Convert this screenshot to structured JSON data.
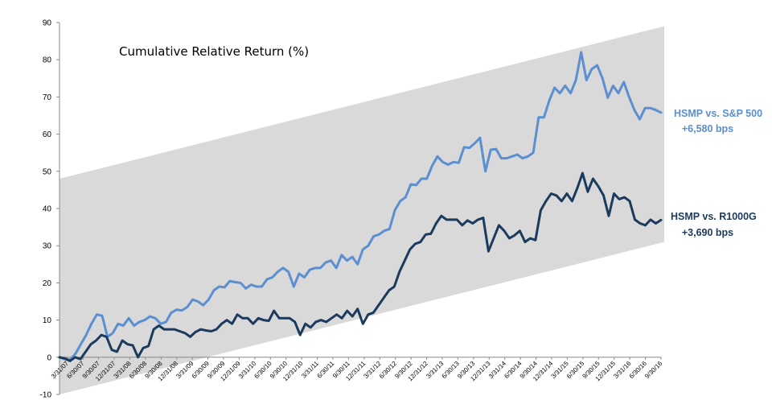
{
  "chart_data": {
    "type": "line",
    "title": "Cumulative Relative Return (%)",
    "xlabel": "",
    "ylabel": "",
    "ylim": [
      -10,
      90
    ],
    "yticks": [
      -10,
      0,
      10,
      20,
      30,
      40,
      50,
      60,
      70,
      80,
      90
    ],
    "grid": false,
    "legend": "none",
    "x_tick_labels": [
      "3/31/07",
      "6/30/07",
      "9/30/07",
      "12/31/07",
      "3/31/08",
      "6/30/08",
      "9/30/08",
      "12/31/08",
      "3/31/09",
      "6/30/09",
      "9/30/09",
      "12/31/09",
      "3/31/10",
      "6/30/10",
      "9/30/10",
      "12/31/10",
      "3/31/11",
      "6/30/11",
      "9/30/11",
      "12/31/11",
      "3/31/12",
      "6/30/12",
      "9/30/12",
      "12/31/12",
      "3/31/13",
      "6/30/13",
      "9/30/13",
      "12/31/13",
      "3/31/14",
      "6/30/14",
      "9/30/14",
      "12/31/14",
      "3/31/15",
      "6/30/15",
      "9/30/15",
      "12/31/15",
      "3/31/16",
      "6/30/16",
      "9/30/16"
    ],
    "band": {
      "color": "#d9d9d9",
      "lower": [
        -10,
        31
      ],
      "upper": [
        48,
        89
      ]
    },
    "series": [
      {
        "name": "HSMP vs. S&P 500",
        "label_line2": "+6,580 bps",
        "color": "#5b8fd0",
        "values": [
          0,
          -0.5,
          -0.7,
          1,
          3.5,
          6,
          9,
          11.5,
          11.2,
          5.5,
          6.5,
          9,
          8.5,
          10.5,
          8.5,
          9.5,
          10,
          11,
          10.5,
          9,
          9.5,
          12,
          12.8,
          12.6,
          13.5,
          15.5,
          15,
          14,
          15.5,
          18,
          19,
          18.8,
          20.5,
          20.2,
          20,
          18.5,
          19.5,
          19,
          19,
          21,
          21.5,
          23,
          24,
          23,
          19,
          22.5,
          21.5,
          23.5,
          24,
          24,
          25.5,
          26,
          24,
          27.5,
          26,
          27,
          25,
          29,
          30,
          32.5,
          33,
          34,
          34.5,
          39.5,
          42,
          43,
          46.5,
          46.3,
          48,
          48,
          51.5,
          54,
          52.5,
          51.8,
          52.5,
          52.3,
          56.5,
          56.3,
          57.5,
          59,
          50,
          55.8,
          56,
          53.5,
          53.5,
          54,
          54.5,
          53.5,
          54,
          55,
          64.5,
          64.5,
          69,
          72.5,
          71,
          73,
          71,
          74.5,
          82,
          74.5,
          77.5,
          78.5,
          75,
          69.8,
          73,
          71,
          74,
          70,
          66.5,
          64,
          67,
          67,
          66.5,
          65.8
        ]
      },
      {
        "name": "HSMP vs. R1000G",
        "label_line2": "+3,690 bps",
        "color": "#1b3a5e",
        "values": [
          0,
          -0.3,
          -1,
          0,
          -0.5,
          1.5,
          3.5,
          4.5,
          6,
          5.5,
          2,
          1.5,
          4.5,
          3.5,
          3.2,
          0,
          2.5,
          3,
          7.5,
          8.5,
          7.5,
          7.5,
          7.5,
          7,
          6.5,
          5.5,
          6.8,
          7.5,
          7.2,
          7,
          7.5,
          9,
          10,
          9,
          11.5,
          10.5,
          10.5,
          9,
          10.5,
          10,
          9.8,
          12.5,
          10.5,
          10.5,
          10.5,
          9.5,
          6,
          9,
          8,
          9.5,
          10,
          9.5,
          10.5,
          11.5,
          10.5,
          12.5,
          11,
          13,
          9,
          11.5,
          12,
          14,
          16,
          18,
          19,
          23,
          26,
          29,
          30.5,
          31,
          33,
          33.2,
          36,
          38,
          37,
          37,
          37,
          35.5,
          36.8,
          36,
          37,
          37.5,
          28.5,
          32,
          35.5,
          34,
          32,
          32.8,
          34,
          31,
          32,
          31.5,
          39.5,
          42,
          44,
          43.5,
          42,
          44,
          42,
          45.5,
          49.5,
          44.5,
          48,
          46,
          43.5,
          38,
          44,
          42.5,
          43,
          42,
          37,
          36,
          35.5,
          37,
          36,
          36.9
        ]
      }
    ]
  }
}
